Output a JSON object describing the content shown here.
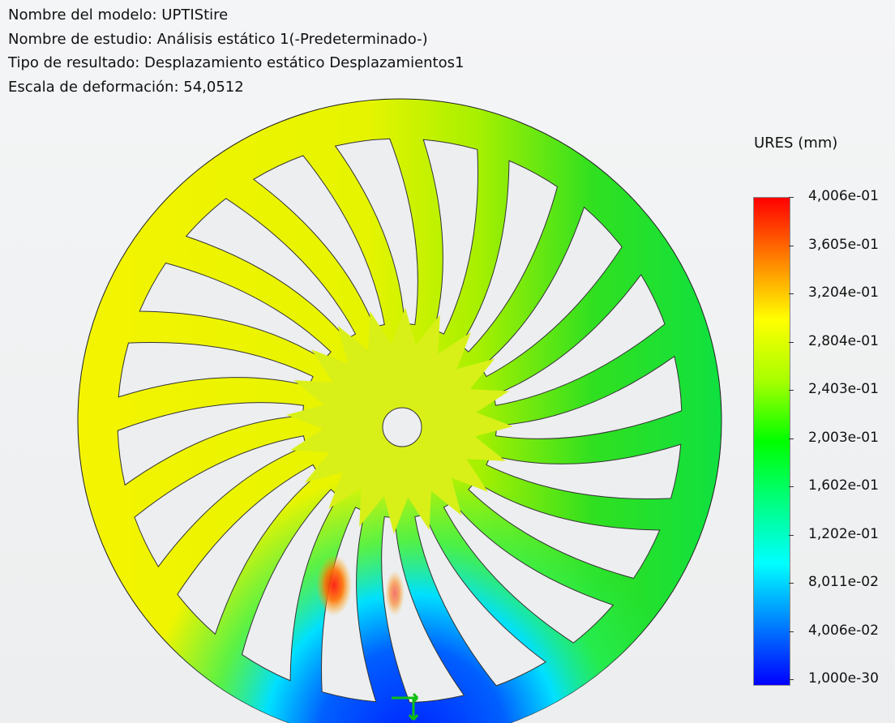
{
  "header": {
    "model_name": "Nombre del modelo: UPTIStire",
    "study_name": "Nombre de estudio: Análisis estático 1(-Predeterminado-)",
    "result_type": "Tipo de resultado: Desplazamiento estático Desplazamientos1",
    "deformation_scale": "Escala de deformación: 54,0512"
  },
  "legend": {
    "title": "URES (mm)",
    "labels": [
      "4,006e-01",
      "3,605e-01",
      "3,204e-01",
      "2,804e-01",
      "2,403e-01",
      "2,003e-01",
      "1,602e-01",
      "1,202e-01",
      "8,011e-02",
      "4,006e-02",
      "1,000e-30"
    ],
    "colors": [
      "#ff0000",
      "#ff8000",
      "#ffff00",
      "#a8ff00",
      "#00ff00",
      "#00ff80",
      "#00ffff",
      "#0080ff",
      "#0000ff"
    ]
  },
  "model": {
    "spoke_count": 20,
    "colors": {
      "rim_left": "#f0f000",
      "rim_right": "#10e030",
      "rim_bottom": "#0050ff",
      "hub": "#d8f018",
      "hot": "#ff2000",
      "hole": "#eceef0"
    }
  }
}
